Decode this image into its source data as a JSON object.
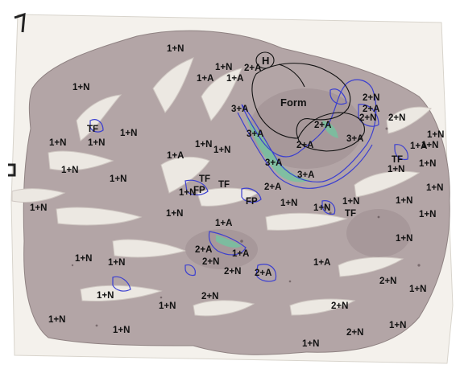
{
  "slide": {
    "region_labels": [
      "1+N",
      "1+N",
      "2+A",
      "1+A",
      "1+A",
      "1+N",
      "Form",
      "3+A",
      "3+A",
      "2+A",
      "2+A",
      "3+A",
      "3+A",
      "3+A",
      "2+N",
      "2+A",
      "2+N",
      "2+N",
      "1+N",
      "1+N",
      "TF",
      "1+N",
      "1+N",
      "1+N",
      "1+A",
      "1+N",
      "1+N",
      "TF",
      "1+A",
      "TF",
      "1+N",
      "1+N",
      "1+N",
      "TF",
      "FP",
      "FP",
      "2+A",
      "1+N",
      "1+N",
      "1+N",
      "TF",
      "1+N",
      "1+N",
      "1+N",
      "1+N",
      "1+N",
      "1+N",
      "1+A",
      "2+A",
      "1+A",
      "2+N",
      "2+N",
      "1+N",
      "1+N",
      "2+A",
      "1+A",
      "1+N",
      "2+N",
      "1+N",
      "2+N",
      "1+N",
      "1+N",
      "2+N",
      "1+N",
      "1+N",
      "2+N",
      "1+N",
      "1+N",
      "1+N"
    ],
    "circled_label": "H"
  },
  "colors": {
    "tissue": "#b4a6a6",
    "background": "#ffffff",
    "outline_blue": "#3b3fd0",
    "outline_black": "#111111",
    "highlight_green": "#6fc7a0"
  }
}
